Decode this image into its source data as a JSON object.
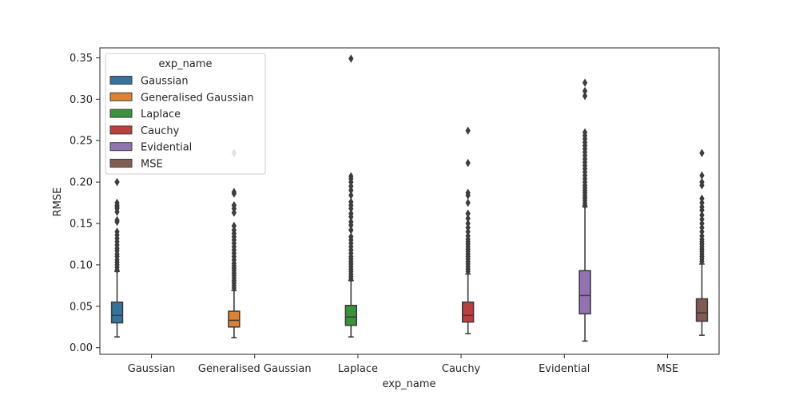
{
  "chart_data": {
    "type": "boxplot",
    "title": "",
    "xlabel": "exp_name",
    "ylabel": "RMSE",
    "ylim": [
      -0.008,
      0.362
    ],
    "yticks": [
      "0.00",
      "0.05",
      "0.10",
      "0.15",
      "0.20",
      "0.25",
      "0.30",
      "0.35"
    ],
    "grid": false,
    "categories": [
      "Gaussian",
      "Generalised Gaussian",
      "Laplace",
      "Cauchy",
      "Evidential",
      "MSE"
    ],
    "legend": {
      "title": "exp_name",
      "placement": "top-left",
      "entries": [
        "Gaussian",
        "Generalised Gaussian",
        "Laplace",
        "Cauchy",
        "Evidential",
        "MSE"
      ]
    },
    "series": [
      {
        "name": "Gaussian",
        "color": "#3274a1",
        "stats": {
          "min": 0.013,
          "q1": 0.03,
          "median": 0.039,
          "q3": 0.055,
          "max": 0.092
        },
        "outliers": [
          0.094,
          0.097,
          0.1,
          0.103,
          0.106,
          0.11,
          0.113,
          0.117,
          0.12,
          0.124,
          0.128,
          0.132,
          0.136,
          0.14,
          0.152,
          0.154,
          0.164,
          0.168,
          0.17,
          0.172,
          0.175,
          0.2
        ]
      },
      {
        "name": "Generalised Gaussian",
        "color": "#e1812c",
        "stats": {
          "min": 0.012,
          "q1": 0.025,
          "median": 0.033,
          "q3": 0.044,
          "max": 0.069
        },
        "outliers": [
          0.072,
          0.075,
          0.078,
          0.081,
          0.084,
          0.087,
          0.09,
          0.093,
          0.096,
          0.099,
          0.102,
          0.106,
          0.11,
          0.114,
          0.118,
          0.122,
          0.126,
          0.13,
          0.134,
          0.138,
          0.142,
          0.147,
          0.163,
          0.168,
          0.172,
          0.186,
          0.188,
          0.235
        ]
      },
      {
        "name": "Laplace",
        "color": "#3a923a",
        "stats": {
          "min": 0.013,
          "q1": 0.027,
          "median": 0.037,
          "q3": 0.051,
          "max": 0.081
        },
        "outliers": [
          0.083,
          0.086,
          0.089,
          0.092,
          0.095,
          0.098,
          0.101,
          0.104,
          0.107,
          0.11,
          0.114,
          0.118,
          0.122,
          0.126,
          0.13,
          0.134,
          0.142,
          0.148,
          0.152,
          0.158,
          0.162,
          0.168,
          0.172,
          0.176,
          0.184,
          0.19,
          0.195,
          0.2,
          0.204,
          0.207,
          0.349
        ]
      },
      {
        "name": "Cauchy",
        "color": "#c03d3e",
        "stats": {
          "min": 0.017,
          "q1": 0.031,
          "median": 0.039,
          "q3": 0.055,
          "max": 0.089
        },
        "outliers": [
          0.092,
          0.095,
          0.098,
          0.101,
          0.104,
          0.107,
          0.11,
          0.113,
          0.116,
          0.119,
          0.122,
          0.125,
          0.128,
          0.131,
          0.135,
          0.14,
          0.145,
          0.15,
          0.156,
          0.162,
          0.175,
          0.184,
          0.187,
          0.223,
          0.262
        ]
      },
      {
        "name": "Evidential",
        "color": "#9372b2",
        "stats": {
          "min": 0.008,
          "q1": 0.041,
          "median": 0.063,
          "q3": 0.093,
          "max": 0.17
        },
        "outliers": [
          0.172,
          0.175,
          0.178,
          0.181,
          0.184,
          0.187,
          0.19,
          0.193,
          0.196,
          0.2,
          0.204,
          0.208,
          0.212,
          0.216,
          0.22,
          0.224,
          0.228,
          0.232,
          0.236,
          0.24,
          0.244,
          0.248,
          0.252,
          0.256,
          0.26,
          0.304,
          0.31,
          0.32
        ]
      },
      {
        "name": "MSE",
        "color": "#845b53",
        "stats": {
          "min": 0.015,
          "q1": 0.032,
          "median": 0.042,
          "q3": 0.059,
          "max": 0.101
        },
        "outliers": [
          0.104,
          0.107,
          0.11,
          0.113,
          0.116,
          0.119,
          0.122,
          0.125,
          0.128,
          0.131,
          0.135,
          0.14,
          0.145,
          0.15,
          0.155,
          0.16,
          0.166,
          0.17,
          0.175,
          0.18,
          0.196,
          0.2,
          0.208,
          0.235
        ]
      }
    ]
  }
}
